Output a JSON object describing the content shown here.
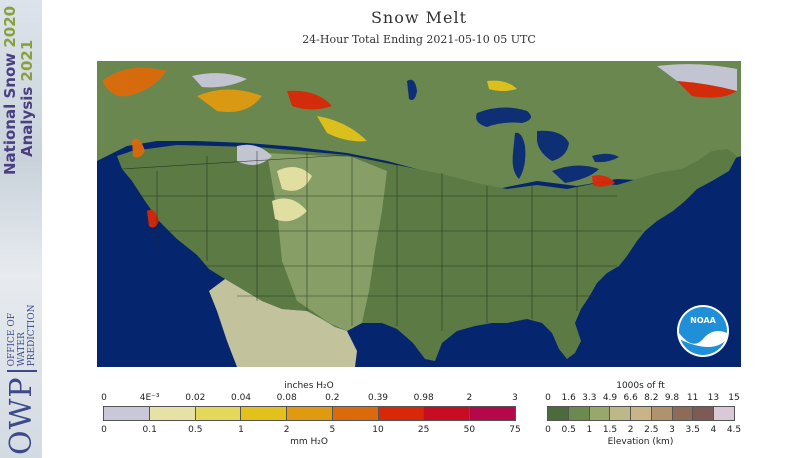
{
  "sidebar": {
    "line1_name": "National Snow",
    "line1_year": "2020",
    "line2_name": "Analysis",
    "line2_year": "2021",
    "logo_big": "OWP",
    "logo_small": [
      "OFFICE OF",
      "WATER",
      "PREDICTION"
    ]
  },
  "title": "Snow Melt",
  "subtitle": "24-Hour Total Ending 2021-05-10 05 UTC",
  "noaa_logo": "NOAA",
  "melt_legend": {
    "top_units": "inches H₂O",
    "bottom_units": "mm H₂O",
    "top_ticks": [
      "0",
      "4E⁻³",
      "0.02",
      "0.04",
      "0.08",
      "0.2",
      "0.39",
      "0.98",
      "2",
      "3"
    ],
    "bottom_ticks": [
      "0",
      "0.1",
      "0.5",
      "1",
      "2",
      "5",
      "10",
      "25",
      "50",
      "75"
    ],
    "colors": [
      "#c8c8d8",
      "#e6e2a6",
      "#e4d85a",
      "#e2c21a",
      "#e09a10",
      "#dc6a0a",
      "#d82808",
      "#c80c22",
      "#b4084a"
    ]
  },
  "elev_legend": {
    "top_units": "1000s of ft",
    "bottom_units": "Elevation (km)",
    "top_ticks": [
      "0",
      "1.6",
      "3.3",
      "4.9",
      "6.6",
      "8.2",
      "9.8",
      "11",
      "13",
      "15"
    ],
    "bottom_ticks": [
      "0",
      "0.5",
      "1",
      "1.5",
      "2",
      "2.5",
      "3",
      "3.5",
      "4",
      "4.5"
    ],
    "colors": [
      "#4c6b3c",
      "#6c8a50",
      "#98a76a",
      "#bcb888",
      "#c8b486",
      "#b0926c",
      "#8c6c56",
      "#7c5a56",
      "#d8c8d8"
    ]
  },
  "map_colors": {
    "ocean": "#05266f",
    "land": "#5b7a44",
    "plains": "#8fa46c",
    "canada": "#6a8750",
    "mexico": "#c2c29c",
    "lakes": "#0e2f74",
    "borders": "#1c2a1c"
  }
}
